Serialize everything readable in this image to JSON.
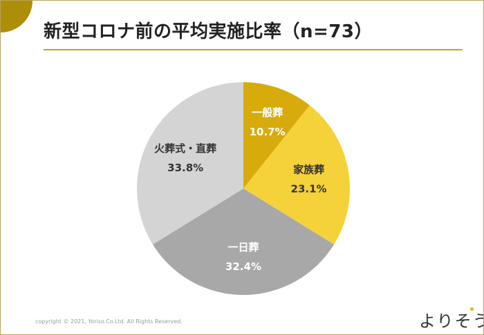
{
  "title": "新型コロナ前の平均実施比率（n=73）",
  "copyright": "copyright © 2021,  Yoriso.Co.Ltd. All Rights Reserved.",
  "logo_text": "よりそう",
  "colors": {
    "corner": "#ad8f07",
    "title_rule": "#c9a50c",
    "frame": "#b7a35a",
    "logo_dot": "#e0b416"
  },
  "chart_data": {
    "type": "pie",
    "start": "12 o'clock",
    "direction": "clockwise",
    "slices": [
      {
        "label": "一般葬",
        "value": 10.7,
        "value_label": "10.7%",
        "color": "#d8ab0c",
        "text_color": "#ffffff"
      },
      {
        "label": "家族葬",
        "value": 23.1,
        "value_label": "23.1%",
        "color": "#f5d23a",
        "text_color": "#333333"
      },
      {
        "label": "一日葬",
        "value": 32.4,
        "value_label": "32.4%",
        "color": "#a8a8a8",
        "text_color": "#ffffff"
      },
      {
        "label": "火葬式・直葬",
        "value": 33.8,
        "value_label": "33.8%",
        "color": "#d4d4d4",
        "text_color": "#333333"
      }
    ]
  }
}
